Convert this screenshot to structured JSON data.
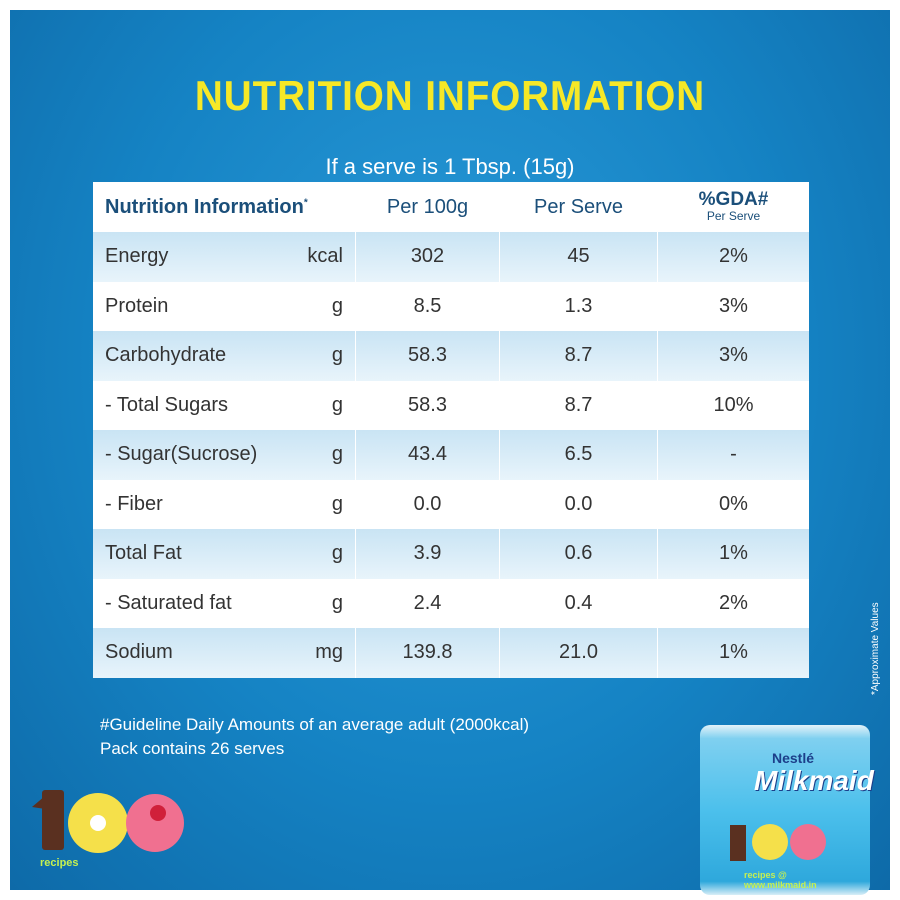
{
  "title": "NUTRITION INFORMATION",
  "subtitle": "If a serve is 1 Tbsp. (15g)",
  "table": {
    "headers": {
      "name": "Nutrition Information",
      "asterisk": "*",
      "per100": "Per 100g",
      "perServe": "Per Serve",
      "gda": "%GDA#",
      "gdaSub": "Per Serve"
    },
    "rows": [
      {
        "name": "Energy",
        "unit": "kcal",
        "per100": "302",
        "perServe": "45",
        "gda": "2%"
      },
      {
        "name": "Protein",
        "unit": "g",
        "per100": "8.5",
        "perServe": "1.3",
        "gda": "3%"
      },
      {
        "name": "Carbohydrate",
        "unit": "g",
        "per100": "58.3",
        "perServe": "8.7",
        "gda": "3%"
      },
      {
        "name": "- Total Sugars",
        "unit": "g",
        "per100": "58.3",
        "perServe": "8.7",
        "gda": "10%"
      },
      {
        "name": "- Sugar(Sucrose)",
        "unit": "g",
        "per100": "43.4",
        "perServe": "6.5",
        "gda": "-"
      },
      {
        "name": "- Fiber",
        "unit": "g",
        "per100": "0.0",
        "perServe": "0.0",
        "gda": "0%"
      },
      {
        "name": "Total Fat",
        "unit": "g",
        "per100": "3.9",
        "perServe": "0.6",
        "gda": "1%"
      },
      {
        "name": "- Saturated fat",
        "unit": "g",
        "per100": "2.4",
        "perServe": "0.4",
        "gda": "2%"
      },
      {
        "name": "Sodium",
        "unit": "mg",
        "per100": "139.8",
        "perServe": "21.0",
        "gda": "1%"
      }
    ]
  },
  "footnotes": [
    "#Guideline Daily Amounts of an average adult (2000kcal)",
    "Pack contains 26 serves"
  ],
  "side_note": "*Approximate Values",
  "badge": {
    "number": "100",
    "label": "recipes"
  },
  "can": {
    "brand_top": "Nestlé",
    "brand": "Milkmaid",
    "recipes": "recipes @",
    "url": "www.milkmaid.in"
  }
}
